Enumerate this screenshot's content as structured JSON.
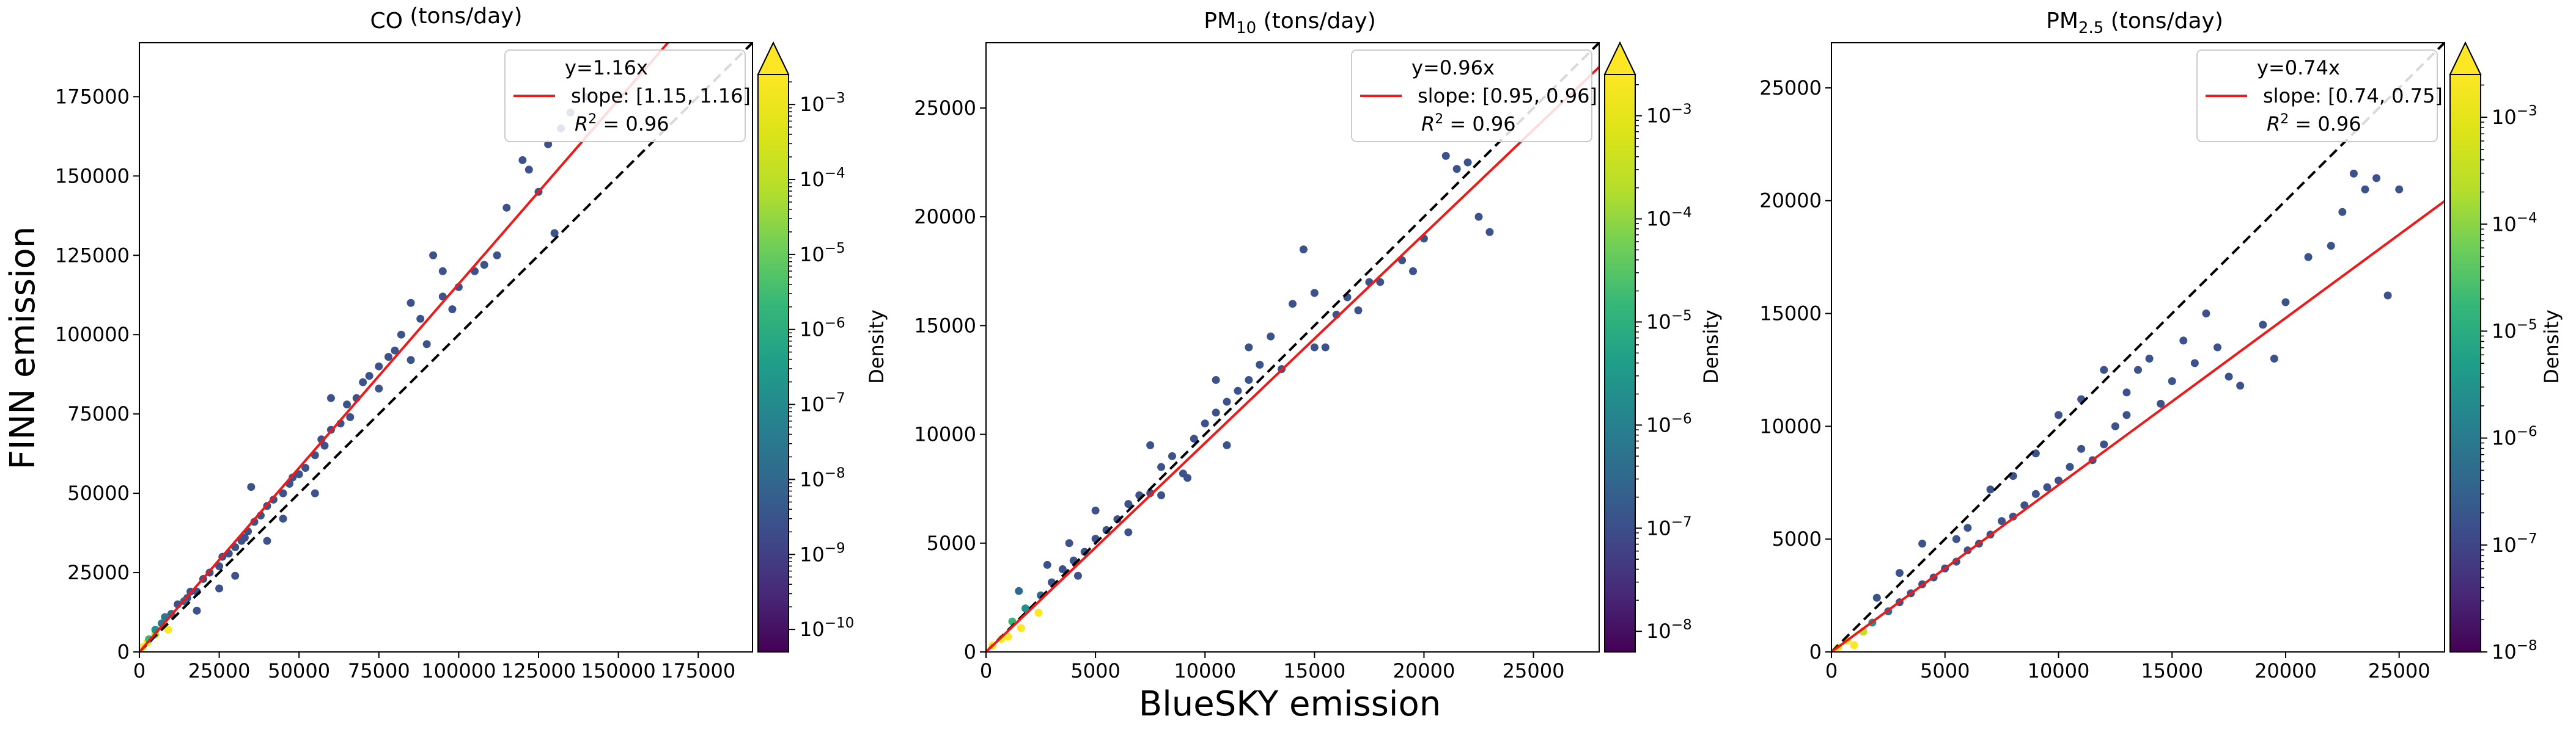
{
  "figure": {
    "ylabel": "FINN emission",
    "xlabel": "BlueSKY emission",
    "colorbar_label": "Density"
  },
  "chart_data": [
    {
      "type": "scatter",
      "title": "CO (tons/day)",
      "title_main": "CO",
      "title_sub": "",
      "title_unit": " (tons/day)",
      "xlim": [
        0,
        192000
      ],
      "ylim": [
        0,
        192000
      ],
      "xticks": [
        0,
        25000,
        50000,
        75000,
        100000,
        125000,
        150000,
        175000
      ],
      "yticks": [
        0,
        25000,
        50000,
        75000,
        100000,
        125000,
        150000,
        175000
      ],
      "fit_slope": 1.16,
      "legend": {
        "line1": "y=1.16x",
        "line2": "slope: [1.15, 1.16]",
        "line3_prefix": "R",
        "line3_sup": "2",
        "line3_rest": " = 0.96"
      },
      "colorbar": {
        "exp_min": -10.3,
        "exp_max": -2.6,
        "ticks": [
          -10,
          -9,
          -8,
          -7,
          -6,
          -5,
          -4,
          -3
        ]
      },
      "points": [
        [
          1000,
          1500,
          "#fde725"
        ],
        [
          2500,
          3000,
          "#fde725"
        ],
        [
          5000,
          5500,
          "#c2df23"
        ],
        [
          9000,
          7000,
          "#fde725"
        ],
        [
          7000,
          9000,
          "#2a788e"
        ],
        [
          12000,
          15000,
          "#3b528b"
        ],
        [
          15000,
          17000,
          "#3b528b"
        ],
        [
          18000,
          19000,
          "#3b528b"
        ],
        [
          20000,
          23000,
          "#3b528b"
        ],
        [
          22000,
          25000,
          "#3b528b"
        ],
        [
          25000,
          27000,
          "#3b528b"
        ],
        [
          28000,
          31000,
          "#3b528b"
        ],
        [
          30000,
          33000,
          "#3b528b"
        ],
        [
          32000,
          35000,
          "#3b528b"
        ],
        [
          34000,
          38000,
          "#3b528b"
        ],
        [
          36000,
          41000,
          "#3b528b"
        ],
        [
          38000,
          43000,
          "#3b528b"
        ],
        [
          40000,
          46000,
          "#3b528b"
        ],
        [
          42000,
          48000,
          "#3b528b"
        ],
        [
          45000,
          50000,
          "#3b528b"
        ],
        [
          47000,
          53000,
          "#3b528b"
        ],
        [
          50000,
          56000,
          "#3b528b"
        ],
        [
          52000,
          58000,
          "#3b528b"
        ],
        [
          55000,
          62000,
          "#3b528b"
        ],
        [
          58000,
          65000,
          "#3b528b"
        ],
        [
          60000,
          70000,
          "#3b528b"
        ],
        [
          63000,
          72000,
          "#3b528b"
        ],
        [
          65000,
          78000,
          "#3b528b"
        ],
        [
          68000,
          80000,
          "#3b528b"
        ],
        [
          70000,
          85000,
          "#3b528b"
        ],
        [
          72000,
          87000,
          "#3b528b"
        ],
        [
          75000,
          90000,
          "#3b528b"
        ],
        [
          78000,
          93000,
          "#3b528b"
        ],
        [
          80000,
          95000,
          "#3b528b"
        ],
        [
          82000,
          100000,
          "#3b528b"
        ],
        [
          85000,
          110000,
          "#3b528b"
        ],
        [
          88000,
          105000,
          "#3b528b"
        ],
        [
          90000,
          97000,
          "#3b528b"
        ],
        [
          95000,
          112000,
          "#3b528b"
        ],
        [
          100000,
          115000,
          "#3b528b"
        ],
        [
          105000,
          120000,
          "#3b528b"
        ],
        [
          108000,
          122000,
          "#3b528b"
        ],
        [
          112000,
          125000,
          "#3b528b"
        ],
        [
          115000,
          140000,
          "#3b528b"
        ],
        [
          120000,
          155000,
          "#3b528b"
        ],
        [
          122000,
          152000,
          "#3b528b"
        ],
        [
          125000,
          145000,
          "#3b528b"
        ],
        [
          128000,
          160000,
          "#3b528b"
        ],
        [
          130000,
          132000,
          "#3b528b"
        ],
        [
          132000,
          165000,
          "#3b528b"
        ],
        [
          135000,
          170000,
          "#3b528b"
        ],
        [
          140000,
          175000,
          "#3b528b"
        ],
        [
          92000,
          125000,
          "#3b528b"
        ],
        [
          95000,
          120000,
          "#3b528b"
        ],
        [
          60000,
          80000,
          "#3b528b"
        ],
        [
          35000,
          52000,
          "#3b528b"
        ],
        [
          25000,
          20000,
          "#3b528b"
        ],
        [
          30000,
          24000,
          "#3b528b"
        ],
        [
          18000,
          13000,
          "#3b528b"
        ],
        [
          40000,
          35000,
          "#3b528b"
        ],
        [
          45000,
          42000,
          "#3b528b"
        ],
        [
          55000,
          50000,
          "#3b528b"
        ],
        [
          10000,
          12000,
          "#31688e"
        ],
        [
          5000,
          7000,
          "#21918c"
        ],
        [
          3000,
          4000,
          "#35b779"
        ],
        [
          8000,
          11000,
          "#2a788e"
        ],
        [
          14000,
          16000,
          "#31688e"
        ],
        [
          16000,
          19000,
          "#3b528b"
        ],
        [
          26000,
          30000,
          "#3b528b"
        ],
        [
          33000,
          36000,
          "#3b528b"
        ],
        [
          48000,
          55000,
          "#3b528b"
        ],
        [
          57000,
          67000,
          "#3b528b"
        ],
        [
          66000,
          74000,
          "#3b528b"
        ],
        [
          75000,
          83000,
          "#3b528b"
        ],
        [
          85000,
          92000,
          "#3b528b"
        ],
        [
          98000,
          108000,
          "#3b528b"
        ]
      ]
    },
    {
      "type": "scatter",
      "title": "PM10 (tons/day)",
      "title_main": "PM",
      "title_sub": "10",
      "title_unit": " (tons/day)",
      "xlim": [
        0,
        28000
      ],
      "ylim": [
        0,
        28000
      ],
      "xticks": [
        0,
        5000,
        10000,
        15000,
        20000,
        25000
      ],
      "yticks": [
        0,
        5000,
        10000,
        15000,
        20000,
        25000
      ],
      "fit_slope": 0.96,
      "legend": {
        "line1": "y=0.96x",
        "line2": "slope: [0.95, 0.96]",
        "line3_prefix": "R",
        "line3_sup": "2",
        "line3_rest": " = 0.96"
      },
      "colorbar": {
        "exp_min": -8.2,
        "exp_max": -2.6,
        "ticks": [
          -8,
          -7,
          -6,
          -5,
          -4,
          -3
        ]
      },
      "points": [
        [
          300,
          300,
          "#fde725"
        ],
        [
          700,
          600,
          "#fde725"
        ],
        [
          1600,
          1100,
          "#fde725"
        ],
        [
          2400,
          1800,
          "#fde725"
        ],
        [
          1200,
          1400,
          "#35b779"
        ],
        [
          1800,
          2000,
          "#21918c"
        ],
        [
          2500,
          2600,
          "#31688e"
        ],
        [
          3000,
          3200,
          "#3b528b"
        ],
        [
          3500,
          3800,
          "#3b528b"
        ],
        [
          4000,
          4200,
          "#3b528b"
        ],
        [
          4500,
          4600,
          "#3b528b"
        ],
        [
          5000,
          5200,
          "#3b528b"
        ],
        [
          5500,
          5600,
          "#3b528b"
        ],
        [
          6000,
          6100,
          "#3b528b"
        ],
        [
          6500,
          6800,
          "#3b528b"
        ],
        [
          7000,
          7200,
          "#3b528b"
        ],
        [
          7500,
          7300,
          "#3b528b"
        ],
        [
          8000,
          8500,
          "#3b528b"
        ],
        [
          8500,
          9000,
          "#3b528b"
        ],
        [
          9000,
          8200,
          "#3b528b"
        ],
        [
          9500,
          9800,
          "#3b528b"
        ],
        [
          10000,
          10500,
          "#3b528b"
        ],
        [
          10500,
          11000,
          "#3b528b"
        ],
        [
          11000,
          11500,
          "#3b528b"
        ],
        [
          11500,
          12000,
          "#3b528b"
        ],
        [
          12000,
          12500,
          "#3b528b"
        ],
        [
          12500,
          13200,
          "#3b528b"
        ],
        [
          13000,
          14500,
          "#3b528b"
        ],
        [
          13500,
          13000,
          "#3b528b"
        ],
        [
          14000,
          16000,
          "#3b528b"
        ],
        [
          14500,
          18500,
          "#3b528b"
        ],
        [
          15000,
          16500,
          "#3b528b"
        ],
        [
          15500,
          14000,
          "#3b528b"
        ],
        [
          16000,
          15500,
          "#3b528b"
        ],
        [
          16500,
          16300,
          "#3b528b"
        ],
        [
          17000,
          15700,
          "#3b528b"
        ],
        [
          18000,
          17000,
          "#3b528b"
        ],
        [
          19000,
          18000,
          "#3b528b"
        ],
        [
          20000,
          19000,
          "#3b528b"
        ],
        [
          21000,
          22800,
          "#3b528b"
        ],
        [
          21500,
          22200,
          "#3b528b"
        ],
        [
          22000,
          22500,
          "#3b528b"
        ],
        [
          22500,
          20000,
          "#3b528b"
        ],
        [
          23000,
          19300,
          "#3b528b"
        ],
        [
          6500,
          5500,
          "#3b528b"
        ],
        [
          8000,
          7200,
          "#3b528b"
        ],
        [
          9200,
          8000,
          "#3b528b"
        ],
        [
          7500,
          9500,
          "#3b528b"
        ],
        [
          11000,
          9500,
          "#3b528b"
        ],
        [
          5000,
          6500,
          "#3b528b"
        ],
        [
          3800,
          5000,
          "#3b528b"
        ],
        [
          4200,
          3500,
          "#3b528b"
        ],
        [
          2800,
          4000,
          "#3b528b"
        ],
        [
          1500,
          2800,
          "#31688e"
        ],
        [
          1000,
          700,
          "#fde725"
        ],
        [
          12000,
          14000,
          "#3b528b"
        ],
        [
          10500,
          12500,
          "#3b528b"
        ],
        [
          15000,
          14000,
          "#3b528b"
        ],
        [
          17500,
          17000,
          "#3b528b"
        ],
        [
          19500,
          17500,
          "#3b528b"
        ]
      ]
    },
    {
      "type": "scatter",
      "title": "PM2.5 (tons/day)",
      "title_main": "PM",
      "title_sub": "2.5",
      "title_unit": " (tons/day)",
      "xlim": [
        0,
        27000
      ],
      "ylim": [
        0,
        27000
      ],
      "xticks": [
        0,
        5000,
        10000,
        15000,
        20000,
        25000
      ],
      "yticks": [
        0,
        5000,
        10000,
        15000,
        20000,
        25000
      ],
      "fit_slope": 0.74,
      "legend": {
        "line1": "y=0.74x",
        "line2": "slope: [0.74, 0.75]",
        "line3_prefix": "R",
        "line3_sup": "2",
        "line3_rest": " = 0.96"
      },
      "colorbar": {
        "exp_min": -8.0,
        "exp_max": -2.6,
        "ticks": [
          -8,
          -7,
          -6,
          -5,
          -4,
          -3
        ]
      },
      "points": [
        [
          300,
          200,
          "#fde725"
        ],
        [
          700,
          500,
          "#fde725"
        ],
        [
          1000,
          300,
          "#fde725"
        ],
        [
          1400,
          900,
          "#c2df23"
        ],
        [
          1800,
          1300,
          "#21918c"
        ],
        [
          2500,
          1800,
          "#31688e"
        ],
        [
          3000,
          2200,
          "#3b528b"
        ],
        [
          3500,
          2600,
          "#3b528b"
        ],
        [
          4000,
          3000,
          "#3b528b"
        ],
        [
          4500,
          3300,
          "#3b528b"
        ],
        [
          5000,
          3700,
          "#3b528b"
        ],
        [
          5500,
          4000,
          "#3b528b"
        ],
        [
          6000,
          4500,
          "#3b528b"
        ],
        [
          6500,
          4800,
          "#3b528b"
        ],
        [
          7000,
          5200,
          "#3b528b"
        ],
        [
          7500,
          5800,
          "#3b528b"
        ],
        [
          8000,
          6000,
          "#3b528b"
        ],
        [
          8500,
          6500,
          "#3b528b"
        ],
        [
          9000,
          7000,
          "#3b528b"
        ],
        [
          9500,
          7300,
          "#3b528b"
        ],
        [
          10000,
          7600,
          "#3b528b"
        ],
        [
          10500,
          8200,
          "#3b528b"
        ],
        [
          11000,
          9000,
          "#3b528b"
        ],
        [
          11500,
          8500,
          "#3b528b"
        ],
        [
          12000,
          9200,
          "#3b528b"
        ],
        [
          12500,
          10000,
          "#3b528b"
        ],
        [
          13000,
          11500,
          "#3b528b"
        ],
        [
          13500,
          12500,
          "#3b528b"
        ],
        [
          14000,
          13000,
          "#3b528b"
        ],
        [
          14500,
          11000,
          "#3b528b"
        ],
        [
          15000,
          12000,
          "#3b528b"
        ],
        [
          16000,
          12800,
          "#3b528b"
        ],
        [
          17000,
          13500,
          "#3b528b"
        ],
        [
          17500,
          12200,
          "#3b528b"
        ],
        [
          18000,
          11800,
          "#3b528b"
        ],
        [
          19000,
          14500,
          "#3b528b"
        ],
        [
          20000,
          15500,
          "#3b528b"
        ],
        [
          21000,
          17500,
          "#3b528b"
        ],
        [
          22000,
          18000,
          "#3b528b"
        ],
        [
          22500,
          19500,
          "#3b528b"
        ],
        [
          23000,
          21200,
          "#3b528b"
        ],
        [
          23500,
          20500,
          "#3b528b"
        ],
        [
          24000,
          21000,
          "#3b528b"
        ],
        [
          24500,
          15800,
          "#3b528b"
        ],
        [
          25000,
          20500,
          "#3b528b"
        ],
        [
          4000,
          4800,
          "#3b528b"
        ],
        [
          5500,
          5000,
          "#3b528b"
        ],
        [
          7000,
          7200,
          "#3b528b"
        ],
        [
          8000,
          7800,
          "#3b528b"
        ],
        [
          9000,
          8800,
          "#3b528b"
        ],
        [
          10000,
          10500,
          "#3b528b"
        ],
        [
          11000,
          11200,
          "#3b528b"
        ],
        [
          6000,
          5500,
          "#3b528b"
        ],
        [
          3000,
          3500,
          "#3b528b"
        ],
        [
          2000,
          2400,
          "#3b528b"
        ],
        [
          12000,
          12500,
          "#3b528b"
        ],
        [
          13000,
          10500,
          "#3b528b"
        ],
        [
          15500,
          13800,
          "#3b528b"
        ],
        [
          16500,
          15000,
          "#3b528b"
        ],
        [
          19500,
          13000,
          "#3b528b"
        ]
      ]
    }
  ]
}
